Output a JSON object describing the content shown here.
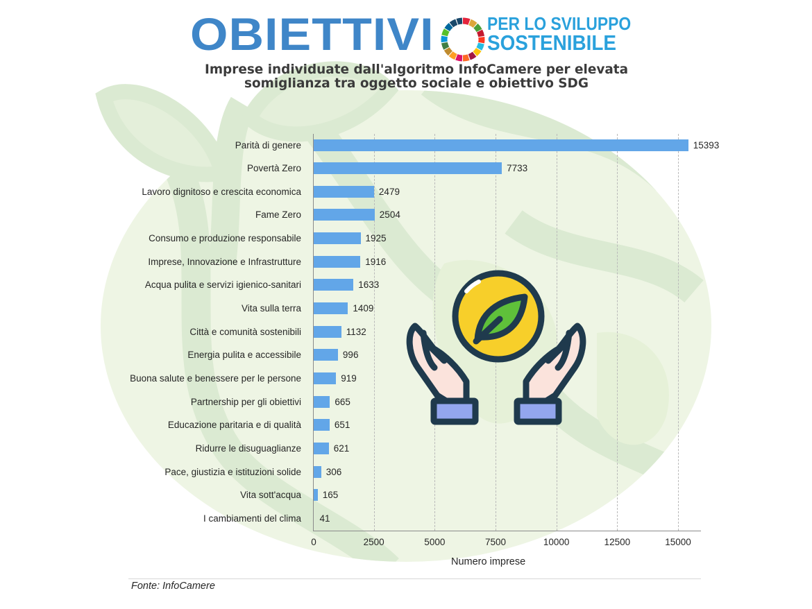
{
  "header": {
    "brand_word": "OBIETTIVI",
    "brand_line1": "PER LO SVILUPPO",
    "brand_line2": "SOSTENIBILE",
    "brand_color": "#3f86c8",
    "sub_color": "#2aa1dc"
  },
  "title": {
    "line1": "Imprese individuate dall'algoritmo InfoCamere per elevata",
    "line2": "somiglianza tra oggetto sociale e obiettivo SDG"
  },
  "chart_data": {
    "type": "bar",
    "orientation": "horizontal",
    "title": "Imprese individuate dall'algoritmo InfoCamere per elevata somiglianza tra oggetto sociale e obiettivo SDG",
    "xlabel": "Numero imprese",
    "ylabel": "",
    "xlim": [
      0,
      16000
    ],
    "xticks": [
      0,
      2500,
      5000,
      7500,
      10000,
      12500,
      15000
    ],
    "grid": "vertical dashed",
    "bar_color": "#62a6e8",
    "categories": [
      "Parità di genere",
      "Povertà Zero",
      "Lavoro dignitoso e crescita economica",
      "Fame Zero",
      "Consumo e produzione responsabile",
      "Imprese, Innovazione e Infrastrutture",
      "Acqua pulita e servizi igienico-sanitari",
      "Vita sulla terra",
      "Città e comunità sostenibili",
      "Energia pulita e accessibile",
      "Buona salute e benessere per le persone",
      "Partnership per gli obiettivi",
      "Educazione paritaria e di qualità",
      "Ridurre le disuguaglianze",
      "Pace, giustizia e istituzioni solide",
      "Vita sott'acqua",
      "I cambiamenti del clima"
    ],
    "values": [
      15393,
      7733,
      2479,
      2504,
      1925,
      1916,
      1633,
      1409,
      1132,
      996,
      919,
      665,
      651,
      621,
      306,
      165,
      41
    ],
    "value_labels": [
      "15393",
      "7733",
      "2479",
      "2504",
      "1925",
      "1916",
      "1633",
      "1409",
      "1132",
      "996",
      "919",
      "665",
      "651",
      "621",
      "306",
      "165",
      "41"
    ],
    "tick_labels": [
      "0",
      "2500",
      "5000",
      "7500",
      "10000",
      "12500",
      "15000"
    ]
  },
  "source": "Fonte: InfoCamere",
  "illustration": {
    "icon": "hands-holding-leaf-icon"
  }
}
